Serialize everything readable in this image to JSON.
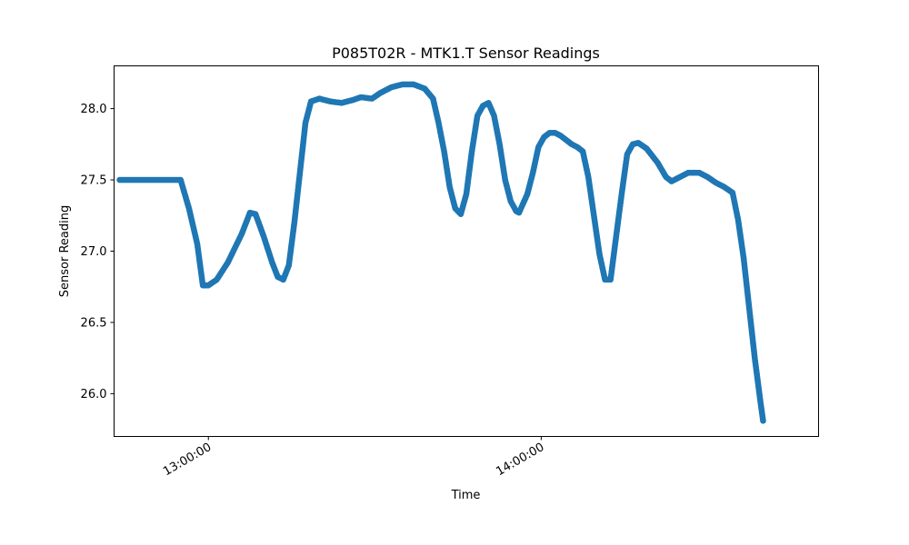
{
  "chart_data": {
    "type": "scatter",
    "title": "P085T02R - MTK1.T Sensor Readings",
    "xlabel": "Time",
    "ylabel": "Sensor Reading",
    "xlim": [
      "12:43:00",
      "14:50:00"
    ],
    "ylim": [
      25.7,
      28.3
    ],
    "grid": false,
    "color": "#1f77b4",
    "x_ticks": [
      "13:00:00",
      "14:00:00"
    ],
    "y_ticks": [
      "26.0",
      "26.5",
      "27.0",
      "27.5",
      "28.0"
    ],
    "series": [
      {
        "points": [
          [
            "12:44:00",
            27.5
          ],
          [
            "12:55:00",
            27.5
          ],
          [
            "12:56:30",
            27.3
          ],
          [
            "12:58:00",
            27.05
          ],
          [
            "12:59:00",
            26.76
          ],
          [
            "13:00:00",
            26.76
          ],
          [
            "13:01:30",
            26.8
          ],
          [
            "13:03:30",
            26.92
          ],
          [
            "13:06:00",
            27.12
          ],
          [
            "13:07:30",
            27.27
          ],
          [
            "13:08:30",
            27.26
          ],
          [
            "13:10:00",
            27.1
          ],
          [
            "13:11:30",
            26.92
          ],
          [
            "13:12:30",
            26.82
          ],
          [
            "13:13:30",
            26.8
          ],
          [
            "13:14:30",
            26.9
          ],
          [
            "13:15:30",
            27.2
          ],
          [
            "13:16:30",
            27.55
          ],
          [
            "13:17:30",
            27.9
          ],
          [
            "13:18:30",
            28.05
          ],
          [
            "13:20:00",
            28.07
          ],
          [
            "13:22:00",
            28.05
          ],
          [
            "13:24:00",
            28.04
          ],
          [
            "13:26:00",
            28.06
          ],
          [
            "13:27:30",
            28.08
          ],
          [
            "13:29:30",
            28.07
          ],
          [
            "13:31:00",
            28.11
          ],
          [
            "13:33:00",
            28.15
          ],
          [
            "13:35:00",
            28.17
          ],
          [
            "13:37:00",
            28.17
          ],
          [
            "13:39:00",
            28.14
          ],
          [
            "13:40:30",
            28.07
          ],
          [
            "13:41:30",
            27.9
          ],
          [
            "13:42:30",
            27.7
          ],
          [
            "13:43:30",
            27.45
          ],
          [
            "13:44:30",
            27.3
          ],
          [
            "13:45:30",
            27.26
          ],
          [
            "13:46:30",
            27.4
          ],
          [
            "13:47:30",
            27.7
          ],
          [
            "13:48:30",
            27.95
          ],
          [
            "13:49:30",
            28.02
          ],
          [
            "13:50:30",
            28.04
          ],
          [
            "13:51:30",
            27.95
          ],
          [
            "13:52:30",
            27.75
          ],
          [
            "13:53:30",
            27.5
          ],
          [
            "13:54:30",
            27.35
          ],
          [
            "13:55:30",
            27.28
          ],
          [
            "13:56:00",
            27.27
          ],
          [
            "13:57:30",
            27.4
          ],
          [
            "13:58:30",
            27.55
          ],
          [
            "13:59:30",
            27.73
          ],
          [
            "14:00:30",
            27.8
          ],
          [
            "14:01:30",
            27.83
          ],
          [
            "14:02:30",
            27.83
          ],
          [
            "14:03:30",
            27.81
          ],
          [
            "14:04:30",
            27.78
          ],
          [
            "14:05:30",
            27.75
          ],
          [
            "14:06:30",
            27.73
          ],
          [
            "14:07:30",
            27.7
          ],
          [
            "14:08:30",
            27.52
          ],
          [
            "14:09:30",
            27.25
          ],
          [
            "14:10:30",
            26.98
          ],
          [
            "14:11:30",
            26.8
          ],
          [
            "14:12:30",
            26.8
          ],
          [
            "14:13:30",
            27.1
          ],
          [
            "14:14:30",
            27.4
          ],
          [
            "14:15:30",
            27.68
          ],
          [
            "14:16:30",
            27.75
          ],
          [
            "14:17:30",
            27.76
          ],
          [
            "14:19:00",
            27.72
          ],
          [
            "14:21:00",
            27.62
          ],
          [
            "14:22:30",
            27.52
          ],
          [
            "14:23:30",
            27.49
          ],
          [
            "14:25:00",
            27.52
          ],
          [
            "14:26:30",
            27.55
          ],
          [
            "14:28:30",
            27.55
          ],
          [
            "14:30:00",
            27.52
          ],
          [
            "14:31:30",
            27.48
          ],
          [
            "14:33:00",
            27.45
          ],
          [
            "14:34:30",
            27.41
          ],
          [
            "14:35:30",
            27.22
          ],
          [
            "14:36:30",
            26.95
          ],
          [
            "14:37:30",
            26.6
          ],
          [
            "14:38:30",
            26.25
          ],
          [
            "14:39:30",
            25.95
          ],
          [
            "14:40:00",
            25.81
          ]
        ]
      }
    ]
  }
}
